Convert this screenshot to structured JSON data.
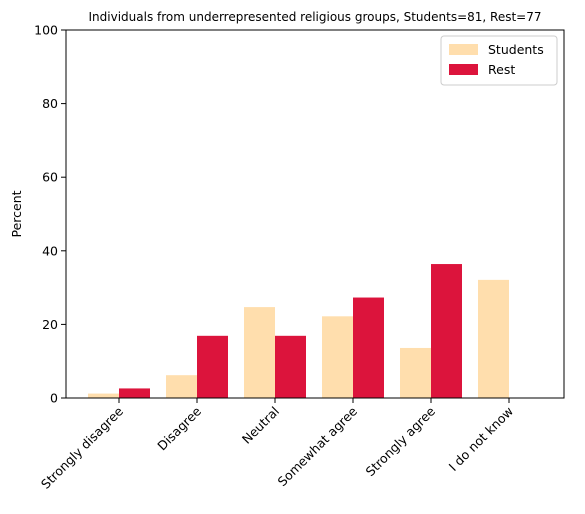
{
  "chart_data": {
    "type": "bar",
    "title": "Individuals from underrepresented religious groups, Students=81, Rest=77",
    "xlabel": "",
    "ylabel": "Percent",
    "ylim": [
      0,
      100
    ],
    "yticks": [
      "0",
      "20",
      "40",
      "60",
      "80",
      "100"
    ],
    "categories": [
      "Strongly disagree",
      "Disagree",
      "Neutral",
      "Somewhat agree",
      "Strongly agree",
      "I do not know"
    ],
    "series": [
      {
        "name": "Students",
        "color": "#ffdead",
        "values": [
          1.2,
          6.2,
          24.7,
          22.2,
          13.6,
          32.1
        ]
      },
      {
        "name": "Rest",
        "color": "#dc143c",
        "values": [
          2.6,
          16.9,
          16.9,
          27.3,
          36.4,
          0
        ]
      }
    ],
    "legend_position": "top-right",
    "grid": false
  }
}
